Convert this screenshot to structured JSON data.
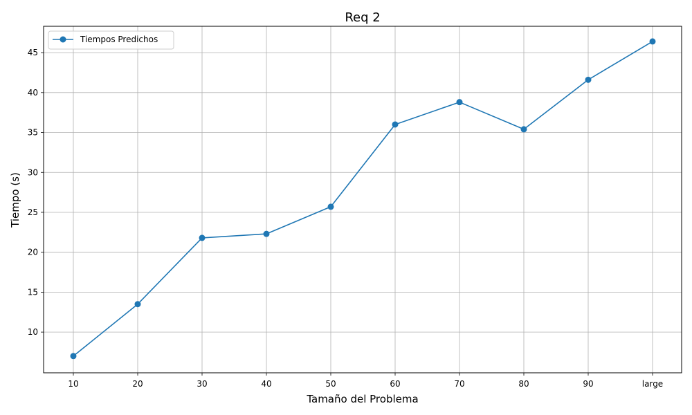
{
  "chart_data": {
    "type": "line",
    "title": "Req 2",
    "xlabel": "Tamaño del Problema",
    "ylabel": "Tiempo (s)",
    "categories": [
      "10",
      "20",
      "30",
      "40",
      "50",
      "60",
      "70",
      "80",
      "90",
      "large"
    ],
    "series": [
      {
        "name": "Tiempos Predichos",
        "values": [
          7.0,
          13.5,
          21.8,
          22.3,
          25.7,
          36.0,
          38.8,
          35.4,
          41.6,
          46.4
        ],
        "color": "#1f77b4",
        "marker": "circle"
      }
    ],
    "ylim": [
      4.9,
      48.3
    ],
    "yticks": [
      10,
      15,
      20,
      25,
      30,
      35,
      40,
      45
    ],
    "grid": true,
    "legend_position": "top-left",
    "colors": {
      "grid": "#b0b0b0",
      "axes": "#000000"
    }
  }
}
